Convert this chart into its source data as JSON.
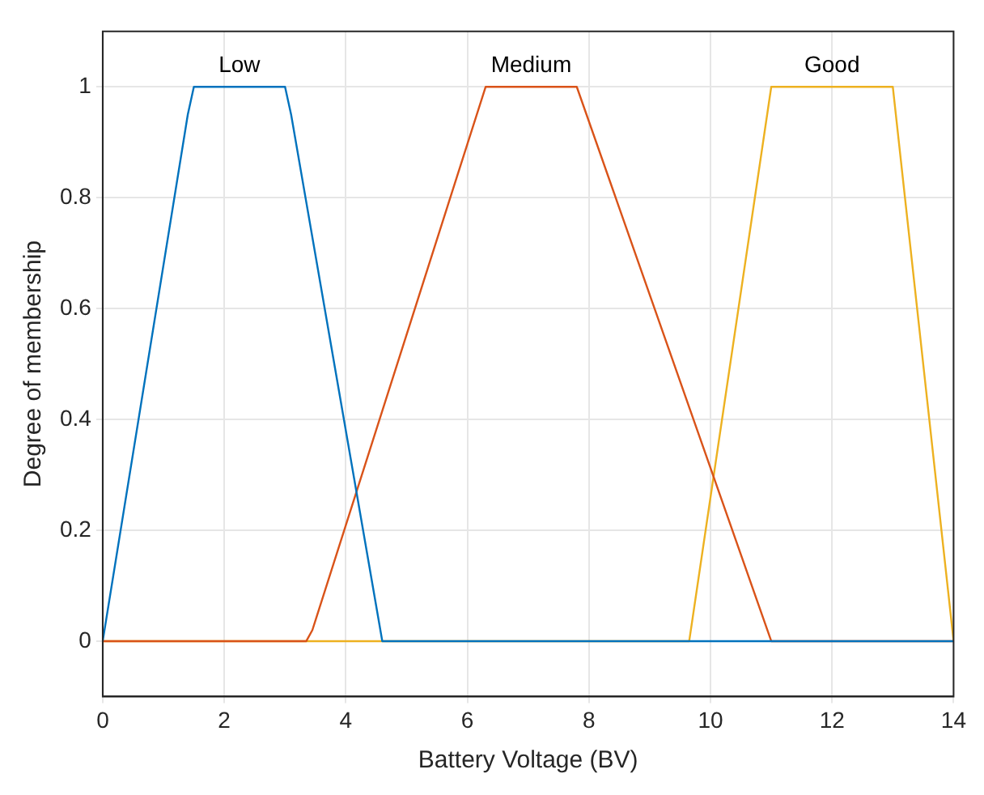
{
  "chart_data": {
    "type": "line",
    "xlabel": "Battery Voltage (BV)",
    "ylabel": "Degree of membership",
    "xlim": [
      0,
      14
    ],
    "xticks": [
      0,
      2,
      4,
      6,
      8,
      10,
      12,
      14
    ],
    "ylim": [
      -0.1,
      1.1
    ],
    "yticks": [
      0,
      0.2,
      0.4,
      0.6,
      0.8,
      1
    ],
    "grid": true,
    "legend": false,
    "marker": "none",
    "line_style": "solid",
    "series": [
      {
        "name": "Low",
        "color": "#0072bd",
        "x": [
          0,
          1.4,
          1.5,
          3,
          3.1,
          4.6,
          14
        ],
        "values": [
          0,
          0.95,
          1,
          1,
          0.95,
          0,
          0
        ]
      },
      {
        "name": "Medium",
        "color": "#d95319",
        "x": [
          0,
          3.35,
          3.45,
          6.3,
          7.8,
          11,
          14
        ],
        "values": [
          0,
          0,
          0.02,
          1,
          1,
          0,
          0
        ]
      },
      {
        "name": "Good",
        "color": "#edb120",
        "x": [
          0,
          9.65,
          11,
          13,
          14
        ],
        "values": [
          0,
          0,
          1,
          1,
          0
        ]
      }
    ]
  }
}
